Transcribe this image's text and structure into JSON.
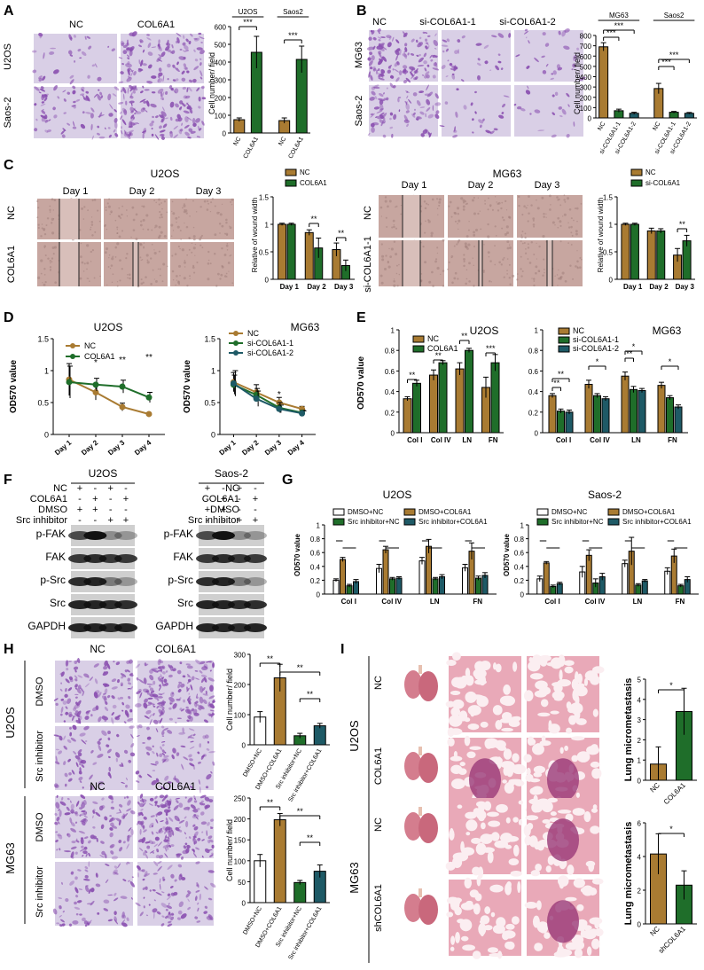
{
  "colors": {
    "brown": "#a97b32",
    "green": "#1f6e2a",
    "teal": "#1e5a66",
    "gray": "#6e6e6e",
    "white": "#ffffff",
    "stain": "#8a4fb0",
    "stainBg": "#d9cfe6",
    "wound": "#c7a6a0",
    "lung": "#d47d8e",
    "lungDense": "#9a3a78"
  },
  "panels": {
    "A": {
      "letter": "A",
      "cols": [
        "NC",
        "COL6A1"
      ],
      "rows": [
        "U2OS",
        "Saos-2"
      ],
      "groups": [
        "U2OS",
        "Saos2"
      ],
      "ylabel": "Cell number/ field",
      "xticks": [
        "NC",
        "COL6A1",
        "NC",
        "COL6A1"
      ],
      "sig": [
        "***",
        "***"
      ]
    },
    "B": {
      "letter": "B",
      "cols": [
        "NC",
        "si-COL6A1-1",
        "si-COL6A1-2"
      ],
      "rows": [
        "MG63",
        "Saos-2"
      ],
      "groups": [
        "MG63",
        "Saos2"
      ],
      "ylabel": "Cell number/ field",
      "xticks": [
        "NC",
        "si-COL6A1-1",
        "si-COL6A1-2",
        "NC",
        "si-COL6A1-1",
        "si-COL6A1-2"
      ],
      "sig": [
        "***",
        "***",
        "***",
        "***"
      ]
    },
    "C": {
      "letter": "C",
      "left": {
        "title": "U2OS",
        "days": [
          "Day 1",
          "Day 2",
          "Day 3"
        ],
        "rows": [
          "NC",
          "COL6A1"
        ],
        "legend": [
          "NC",
          "COL6A1"
        ],
        "ylabel": "Relative of wound width",
        "sig": [
          "**",
          "**"
        ]
      },
      "right": {
        "title": "MG63",
        "days": [
          "Day 1",
          "Day 2",
          "Day 3"
        ],
        "rows": [
          "NC",
          "si-COL6A1-1"
        ],
        "legend": [
          "NC",
          "si-COL6A1"
        ],
        "ylabel": "Relative of wound width",
        "sig": [
          "**"
        ]
      }
    },
    "D": {
      "letter": "D",
      "left": {
        "title": "U2OS",
        "legend": [
          "NC",
          "COL6A1"
        ],
        "ylabel": "OD570 value",
        "xticks": [
          "Day 1",
          "Day 2",
          "Day 3",
          "Day 4"
        ],
        "sig": [
          "*",
          "**",
          "**"
        ]
      },
      "right": {
        "title": "MG63",
        "legend": [
          "NC",
          "si-COL6A1-1",
          "si-COL6A1-2"
        ],
        "ylabel": "OD570 value",
        "xticks": [
          "Day 1",
          "Day 2",
          "Day 3",
          "Day 4"
        ],
        "sig": [
          "*"
        ]
      }
    },
    "E": {
      "letter": "E",
      "left": {
        "title": "U2OS",
        "legend": [
          "NC",
          "COL6A1"
        ],
        "ylabel": "OD570 value",
        "xticks": [
          "Col I",
          "Col IV",
          "LN",
          "FN"
        ],
        "sig": [
          "**",
          "**",
          "**",
          "***"
        ]
      },
      "right": {
        "title": "MG63",
        "legend": [
          "NC",
          "si-COL6A1-1",
          "si-COL6A1-2"
        ],
        "xticks": [
          "Col I",
          "Col IV",
          "LN",
          "FN"
        ],
        "sig": [
          "**",
          "**",
          "*",
          "**",
          "*",
          "*"
        ]
      }
    },
    "F": {
      "letter": "F",
      "left": {
        "title": "U2OS",
        "cond": [
          "NC",
          "COL6A1",
          "DMSO",
          "Src inhibitor"
        ],
        "signs": [
          [
            "+",
            "-",
            "+",
            "-"
          ],
          [
            "-",
            "+",
            "-",
            "+"
          ],
          [
            "+",
            "+",
            "-",
            "-"
          ],
          [
            "-",
            "-",
            "+",
            "+"
          ]
        ],
        "bands": [
          "p-FAK",
          "FAK",
          "p-Src",
          "Src",
          "GAPDH"
        ]
      },
      "right": {
        "title": "Saos-2",
        "cond": [
          "NC",
          "COL6A1",
          "DMSO",
          "Src inhibitor"
        ],
        "signs": [
          [
            "+",
            "-",
            "+",
            "-"
          ],
          [
            "-",
            "+",
            "-",
            "+"
          ],
          [
            "+",
            "+",
            "-",
            "-"
          ],
          [
            "-",
            "-",
            "+",
            "+"
          ]
        ],
        "bands": [
          "p-FAK",
          "FAK",
          "p-Src",
          "Src",
          "GAPDH"
        ]
      }
    },
    "G": {
      "letter": "G",
      "left": {
        "title": "U2OS",
        "legend": [
          "DMSO+NC",
          "DMSO+COL6A1",
          "Src inhibitor+NC",
          "Src inhibitor+COL6A1"
        ],
        "ylabel": "OD570 value",
        "xticks": [
          "Col I",
          "Col IV",
          "LN",
          "FN"
        ]
      },
      "right": {
        "title": "Saos-2",
        "legend": [
          "DMSO+NC",
          "DMSO+COL6A1",
          "Src inhibitor+NC",
          "Src inhibitor+COL6A1"
        ],
        "ylabel": "OD570 value",
        "xticks": [
          "Col I",
          "Col IV",
          "LN",
          "FN"
        ]
      }
    },
    "H": {
      "letter": "H",
      "top": {
        "cols": [
          "NC",
          "COL6A1"
        ],
        "side": "U2OS",
        "rows": [
          "DMSO",
          "Src inhibitor"
        ],
        "ylabel": "Cell number/ field",
        "xticks": [
          "DMSO+NC",
          "DMSO+COL6A1",
          "Src inhibitor+NC",
          "Src inhibitor+COL6A1"
        ],
        "sig": [
          "**",
          "**",
          "**"
        ]
      },
      "bottom": {
        "cols": [
          "NC",
          "COL6A1"
        ],
        "side": "MG63",
        "rows": [
          "DMSO",
          "Src inhibitor"
        ],
        "ylabel": "Cell number/ field",
        "xticks": [
          "DMSO+NC",
          "DMSO+COL6A1",
          "Src inhibitor+NC",
          "Src inhibitor+COL6A1"
        ],
        "sig": [
          "**",
          "**",
          "**"
        ]
      }
    },
    "I": {
      "letter": "I",
      "top": {
        "side": "U2OS",
        "rows": [
          "NC",
          "COL6A1"
        ],
        "ylabel": "Lung micrometastasis",
        "xticks": [
          "NC",
          "COL6A1"
        ],
        "sig": [
          "*"
        ]
      },
      "bottom": {
        "side": "MG63",
        "rows": [
          "NC",
          "shCOL6A1"
        ],
        "ylabel": "Lung micrometastasis",
        "xticks": [
          "NC",
          "shCOL6A1"
        ],
        "sig": [
          "*"
        ]
      }
    }
  },
  "chart_data": [
    {
      "id": "A",
      "type": "bar",
      "ylabel": "Cell number/ field",
      "ylim": [
        0,
        600
      ],
      "yticks": [
        0,
        100,
        200,
        300,
        400,
        500,
        600
      ],
      "categories": [
        "NC",
        "COL6A1",
        "NC",
        "COL6A1"
      ],
      "groups": [
        "U2OS",
        "Saos2"
      ],
      "values": [
        75,
        455,
        70,
        415
      ],
      "errors": [
        10,
        90,
        15,
        75
      ],
      "colors": [
        "brown",
        "green",
        "brown",
        "green"
      ]
    },
    {
      "id": "B",
      "type": "bar",
      "ylabel": "Cell number/ field",
      "ylim": [
        0,
        800
      ],
      "yticks": [
        0,
        100,
        200,
        300,
        400,
        500,
        600,
        700,
        800
      ],
      "categories": [
        "NC",
        "si-COL6A1-1",
        "si-COL6A1-2",
        "NC",
        "si-COL6A1-1",
        "si-COL6A1-2"
      ],
      "groups": [
        "MG63",
        "Saos2"
      ],
      "values": [
        690,
        70,
        45,
        285,
        55,
        45
      ],
      "errors": [
        40,
        15,
        10,
        50,
        8,
        8
      ],
      "colors": [
        "brown",
        "green",
        "teal",
        "brown",
        "green",
        "teal"
      ]
    },
    {
      "id": "C-left",
      "type": "bar",
      "ylabel": "Relative of wound width",
      "ylim": [
        0,
        1.5
      ],
      "yticks": [
        0,
        0.5,
        1.0,
        1.5
      ],
      "categories": [
        "Day 1",
        "Day 2",
        "Day 3"
      ],
      "series": [
        {
          "name": "NC",
          "values": [
            1.0,
            0.85,
            0.54
          ],
          "errors": [
            0.02,
            0.05,
            0.12
          ]
        },
        {
          "name": "COL6A1",
          "values": [
            1.0,
            0.57,
            0.25
          ],
          "errors": [
            0.02,
            0.18,
            0.1
          ]
        }
      ]
    },
    {
      "id": "C-right",
      "type": "bar",
      "ylabel": "Relative of wound width",
      "ylim": [
        0,
        1.5
      ],
      "yticks": [
        0,
        0.5,
        1.0,
        1.5
      ],
      "categories": [
        "Day 1",
        "Day 2",
        "Day 3"
      ],
      "series": [
        {
          "name": "NC",
          "values": [
            1.0,
            0.88,
            0.44
          ],
          "errors": [
            0.02,
            0.05,
            0.12
          ]
        },
        {
          "name": "si-COL6A1",
          "values": [
            1.0,
            0.88,
            0.7
          ],
          "errors": [
            0.02,
            0.04,
            0.1
          ]
        }
      ]
    },
    {
      "id": "D-left",
      "type": "line",
      "ylabel": "OD570 value",
      "ylim": [
        0,
        1.5
      ],
      "yticks": [
        0,
        0.5,
        1.0,
        1.5
      ],
      "categories": [
        "Day 1",
        "Day 2",
        "Day 3",
        "Day 4"
      ],
      "series": [
        {
          "name": "NC",
          "values": [
            0.86,
            0.66,
            0.43,
            0.32
          ],
          "errors": [
            0.25,
            0.12,
            0.06,
            0.02
          ]
        },
        {
          "name": "COL6A1",
          "values": [
            0.82,
            0.78,
            0.75,
            0.58
          ],
          "errors": [
            0.25,
            0.1,
            0.1,
            0.08
          ]
        }
      ]
    },
    {
      "id": "D-right",
      "type": "line",
      "ylabel": "OD570 value",
      "ylim": [
        0,
        1.5
      ],
      "yticks": [
        0,
        0.5,
        1.0,
        1.5
      ],
      "categories": [
        "Day 1",
        "Day 2",
        "Day 3",
        "Day 4"
      ],
      "series": [
        {
          "name": "NC",
          "values": [
            0.82,
            0.66,
            0.5,
            0.4
          ],
          "errors": [
            0.15,
            0.12,
            0.08,
            0.04
          ]
        },
        {
          "name": "si-COL6A1-1",
          "values": [
            0.78,
            0.62,
            0.42,
            0.34
          ],
          "errors": [
            0.15,
            0.1,
            0.08,
            0.04
          ]
        },
        {
          "name": "si-COL6A1-2",
          "values": [
            0.8,
            0.56,
            0.4,
            0.33
          ],
          "errors": [
            0.2,
            0.12,
            0.06,
            0.04
          ]
        }
      ]
    },
    {
      "id": "E-left",
      "type": "bar",
      "ylabel": "OD570 value",
      "ylim": [
        0,
        1.0
      ],
      "yticks": [
        0,
        0.2,
        0.4,
        0.6,
        0.8,
        1.0
      ],
      "categories": [
        "Col I",
        "Col IV",
        "LN",
        "FN"
      ],
      "series": [
        {
          "name": "NC",
          "values": [
            0.33,
            0.56,
            0.62,
            0.44
          ],
          "errors": [
            0.02,
            0.05,
            0.06,
            0.1
          ]
        },
        {
          "name": "COL6A1",
          "values": [
            0.48,
            0.68,
            0.8,
            0.68
          ],
          "errors": [
            0.03,
            0.02,
            0.02,
            0.08
          ]
        }
      ]
    },
    {
      "id": "E-right",
      "type": "bar",
      "ylabel": "",
      "ylim": [
        0,
        1.0
      ],
      "yticks": [
        0,
        0.2,
        0.4,
        0.6,
        0.8,
        1.0
      ],
      "categories": [
        "Col I",
        "Col IV",
        "LN",
        "FN"
      ],
      "series": [
        {
          "name": "NC",
          "values": [
            0.36,
            0.47,
            0.55,
            0.46
          ],
          "errors": [
            0.02,
            0.04,
            0.04,
            0.03
          ]
        },
        {
          "name": "si-COL6A1-1",
          "values": [
            0.21,
            0.36,
            0.42,
            0.34
          ],
          "errors": [
            0.02,
            0.02,
            0.03,
            0.02
          ]
        },
        {
          "name": "si-COL6A1-2",
          "values": [
            0.2,
            0.33,
            0.41,
            0.25
          ],
          "errors": [
            0.02,
            0.02,
            0.02,
            0.02
          ]
        }
      ]
    },
    {
      "id": "G-left",
      "type": "bar",
      "ylabel": "OD570 value",
      "ylim": [
        0,
        1.0
      ],
      "yticks": [
        0,
        0.2,
        0.4,
        0.6,
        0.8,
        1.0
      ],
      "categories": [
        "Col I",
        "Col IV",
        "LN",
        "FN"
      ],
      "series": [
        {
          "name": "DMSO+NC",
          "values": [
            0.2,
            0.37,
            0.48,
            0.38
          ],
          "errors": [
            0.02,
            0.06,
            0.05,
            0.05
          ]
        },
        {
          "name": "DMSO+COL6A1",
          "values": [
            0.5,
            0.64,
            0.69,
            0.62
          ],
          "errors": [
            0.03,
            0.05,
            0.1,
            0.12
          ]
        },
        {
          "name": "Src inhibitor+NC",
          "values": [
            0.12,
            0.22,
            0.22,
            0.23
          ],
          "errors": [
            0.02,
            0.02,
            0.02,
            0.03
          ]
        },
        {
          "name": "Src inhibitor+COL6A1",
          "values": [
            0.18,
            0.23,
            0.25,
            0.27
          ],
          "errors": [
            0.03,
            0.02,
            0.03,
            0.04
          ]
        }
      ]
    },
    {
      "id": "G-right",
      "type": "bar",
      "ylabel": "OD570 value",
      "ylim": [
        0,
        1.0
      ],
      "yticks": [
        0,
        0.2,
        0.4,
        0.6,
        0.8,
        1.0
      ],
      "categories": [
        "Col I",
        "Col IV",
        "LN",
        "FN"
      ],
      "series": [
        {
          "name": "DMSO+NC",
          "values": [
            0.22,
            0.32,
            0.44,
            0.33
          ],
          "errors": [
            0.04,
            0.08,
            0.05,
            0.05
          ]
        },
        {
          "name": "DMSO+COL6A1",
          "values": [
            0.45,
            0.56,
            0.62,
            0.55
          ],
          "errors": [
            0.02,
            0.08,
            0.2,
            0.1
          ]
        },
        {
          "name": "Src inhibitor+NC",
          "values": [
            0.11,
            0.16,
            0.13,
            0.12
          ],
          "errors": [
            0.02,
            0.06,
            0.02,
            0.02
          ]
        },
        {
          "name": "Src inhibitor+COL6A1",
          "values": [
            0.15,
            0.25,
            0.19,
            0.21
          ],
          "errors": [
            0.02,
            0.05,
            0.02,
            0.04
          ]
        }
      ]
    },
    {
      "id": "H-top",
      "type": "bar",
      "ylabel": "Cell number/ field",
      "ylim": [
        0,
        300
      ],
      "yticks": [
        0,
        100,
        200,
        300
      ],
      "categories": [
        "DMSO+NC",
        "DMSO+COL6A1",
        "Src inhibitor+NC",
        "Src inhibitor+COL6A1"
      ],
      "values": [
        92,
        222,
        30,
        63
      ],
      "errors": [
        18,
        45,
        8,
        8
      ],
      "colors": [
        "white",
        "brown",
        "green",
        "teal"
      ]
    },
    {
      "id": "H-bottom",
      "type": "bar",
      "ylabel": "Cell number/ field",
      "ylim": [
        0,
        250
      ],
      "yticks": [
        0,
        50,
        100,
        150,
        200,
        250
      ],
      "categories": [
        "DMSO+NC",
        "DMSO+COL6A1",
        "Src inhibitor+NC",
        "Src inhibitor+COL6A1"
      ],
      "values": [
        100,
        198,
        48,
        75
      ],
      "errors": [
        15,
        15,
        5,
        15
      ],
      "colors": [
        "white",
        "brown",
        "green",
        "teal"
      ]
    },
    {
      "id": "I-top",
      "type": "bar",
      "ylabel": "Lung micrometastasis",
      "ylim": [
        0,
        5
      ],
      "yticks": [
        0,
        1,
        2,
        3,
        4,
        5
      ],
      "categories": [
        "NC",
        "COL6A1"
      ],
      "values": [
        0.8,
        3.4
      ],
      "errors": [
        0.85,
        1.15
      ],
      "colors": [
        "brown",
        "green"
      ]
    },
    {
      "id": "I-bottom",
      "type": "bar",
      "ylabel": "Lung micrometastasis",
      "ylim": [
        0,
        6
      ],
      "yticks": [
        0,
        2,
        4,
        6
      ],
      "categories": [
        "NC",
        "shCOL6A1"
      ],
      "values": [
        4.15,
        2.3
      ],
      "errors": [
        1.2,
        0.85
      ],
      "colors": [
        "brown",
        "green"
      ]
    }
  ]
}
